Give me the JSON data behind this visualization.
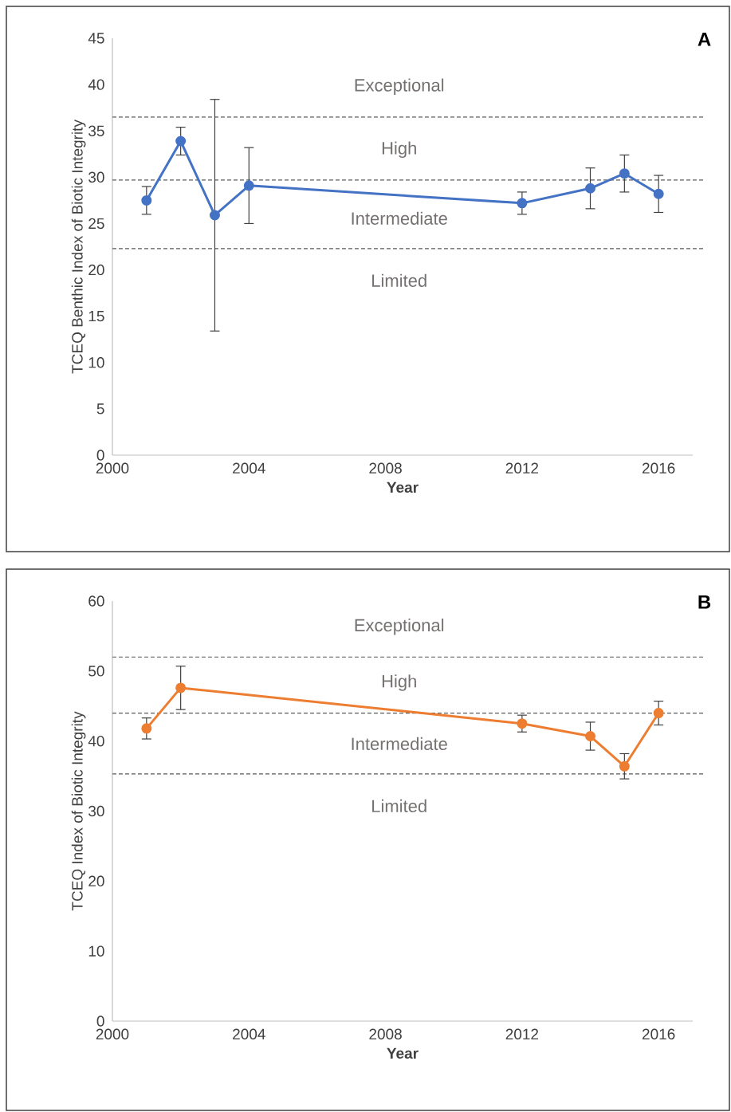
{
  "chart_data": [
    {
      "type": "line",
      "xlabel": "Year",
      "ylabel": "TCEQ Benthic Index of Biotic Integrity",
      "x": [
        2001,
        2002,
        2003,
        2004,
        2012,
        2014,
        2015,
        2016
      ],
      "series": [
        {
          "color": "#4472c4",
          "values": [
            27.5,
            33.9,
            25.9,
            29.1,
            27.2,
            28.8,
            30.4,
            28.2
          ],
          "errors": [
            1.5,
            1.5,
            12.5,
            4.1,
            1.2,
            2.2,
            2.0,
            2.0
          ]
        }
      ],
      "xlim": [
        2000,
        2017
      ],
      "xticks": [
        2000,
        2004,
        2008,
        2012,
        2016
      ],
      "ylim": [
        0,
        45
      ],
      "yticks": [
        0,
        5,
        10,
        15,
        20,
        25,
        30,
        35,
        40,
        45
      ],
      "marker": "circle",
      "line_style": "solid",
      "ref_lines": [
        {
          "axis": "y",
          "value": 36.5,
          "color": "#595959",
          "line_style": "dashed"
        },
        {
          "axis": "y",
          "value": 29.7,
          "color": "#595959",
          "line_style": "dashed"
        },
        {
          "axis": "y",
          "value": 22.3,
          "color": "#595959",
          "line_style": "dashed"
        }
      ],
      "annotations": [
        "Exceptional",
        "High",
        "Intermediate",
        "Limited",
        "A"
      ]
    },
    {
      "type": "line",
      "xlabel": "Year",
      "ylabel": "TCEQ Index of Biotic Integrity",
      "x": [
        2001,
        2002,
        2012,
        2014,
        2015,
        2016
      ],
      "series": [
        {
          "color": "#ed7d31",
          "values": [
            41.8,
            47.6,
            42.5,
            40.7,
            36.4,
            44.0
          ],
          "errors": [
            1.5,
            3.1,
            1.2,
            2.0,
            1.8,
            1.7
          ]
        }
      ],
      "xlim": [
        2000,
        2017
      ],
      "xticks": [
        2000,
        2004,
        2008,
        2012,
        2016
      ],
      "ylim": [
        0,
        60
      ],
      "yticks": [
        0,
        10,
        20,
        30,
        40,
        50,
        60
      ],
      "marker": "circle",
      "line_style": "solid",
      "ref_lines": [
        {
          "axis": "y",
          "value": 52,
          "color": "#595959",
          "line_style": "dashed"
        },
        {
          "axis": "y",
          "value": 44,
          "color": "#595959",
          "line_style": "dashed"
        },
        {
          "axis": "y",
          "value": 35.3,
          "color": "#595959",
          "line_style": "dashed"
        }
      ],
      "annotations": [
        "Exceptional",
        "High",
        "Intermediate",
        "Limited",
        "B"
      ]
    }
  ]
}
